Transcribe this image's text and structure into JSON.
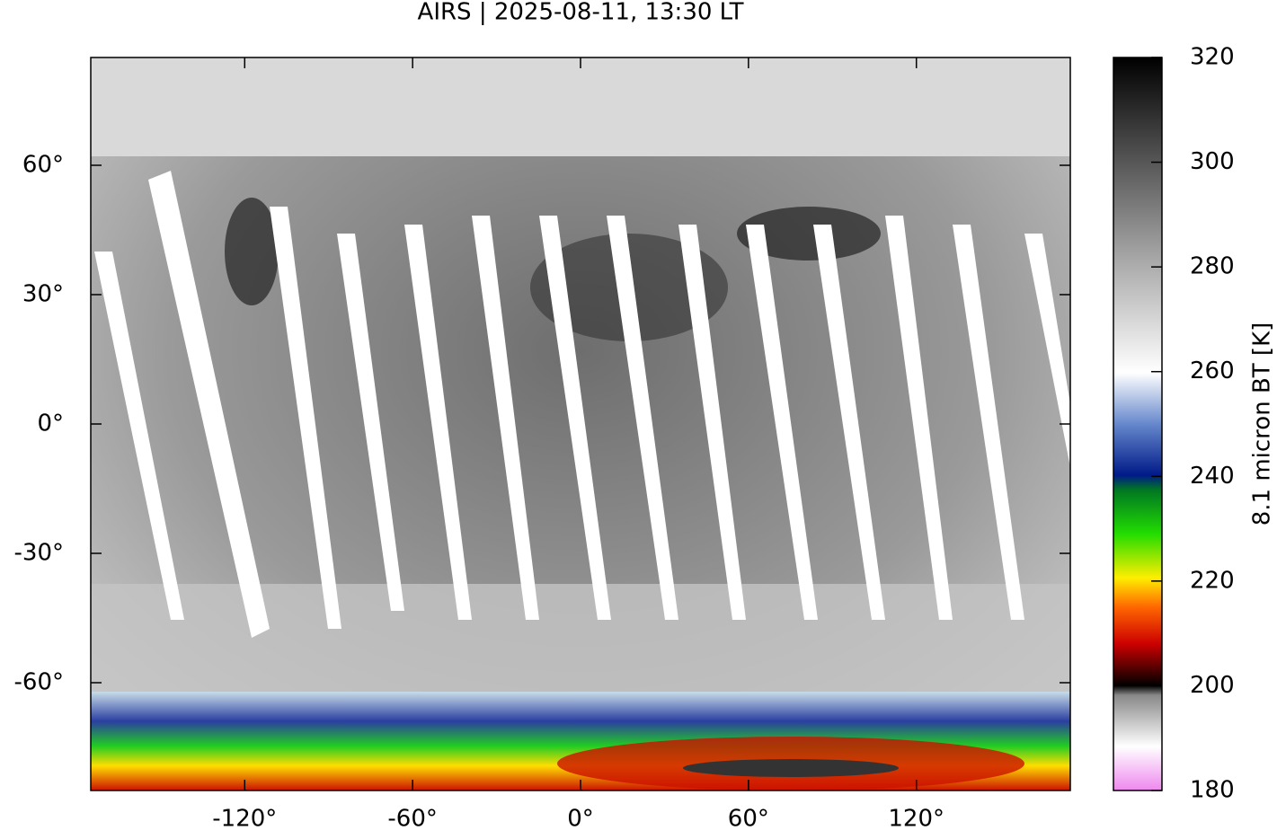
{
  "title": "AIRS | 2025-08-11, 13:30 LT",
  "map": {
    "xlim": [
      -175,
      175
    ],
    "ylim": [
      -85,
      85
    ],
    "xticks": [
      {
        "value": -120,
        "label": "-120°"
      },
      {
        "value": -60,
        "label": "-60°"
      },
      {
        "value": 0,
        "label": "0°"
      },
      {
        "value": 60,
        "label": "60°"
      },
      {
        "value": 120,
        "label": "120°"
      }
    ],
    "yticks": [
      {
        "value": -60,
        "label": "-60°"
      },
      {
        "value": -30,
        "label": "-30°"
      },
      {
        "value": 0,
        "label": "0°"
      },
      {
        "value": 30,
        "label": "30°"
      },
      {
        "value": 60,
        "label": "60°"
      }
    ]
  },
  "colorbar": {
    "label": "8.1 micron BT [K]",
    "lim": [
      180,
      320
    ],
    "ticks": [
      180,
      200,
      220,
      240,
      260,
      280,
      300,
      320
    ]
  }
}
